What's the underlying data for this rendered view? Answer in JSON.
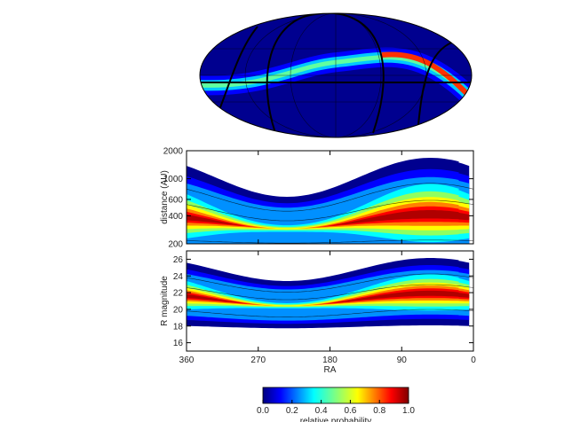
{
  "chart_data": [
    {
      "type": "density",
      "ylabel": "distance (AU)",
      "yscale": "log",
      "ylim": [
        200,
        2000
      ],
      "yticks": [
        200,
        400,
        600,
        1000,
        2000
      ]
    },
    {
      "type": "density",
      "ylabel": "R magnitude",
      "xlabel": "RA",
      "xlim": [
        360,
        0
      ],
      "xticks": [
        360,
        270,
        180,
        90,
        0
      ],
      "ylim": [
        15,
        27
      ],
      "yticks": [
        16,
        18,
        20,
        22,
        24,
        26
      ]
    },
    {
      "type": "colorbar",
      "label": "relative probability",
      "xlim": [
        0,
        1
      ],
      "xticks": [
        {
          "value": 0,
          "label": "0.0"
        },
        {
          "value": 0.2,
          "label": "0.2"
        },
        {
          "value": 0.4,
          "label": "0.4"
        },
        {
          "value": 0.6,
          "label": "0.6"
        },
        {
          "value": 0.8,
          "label": "0.8"
        },
        {
          "value": 1,
          "label": "1.0"
        }
      ]
    }
  ]
}
